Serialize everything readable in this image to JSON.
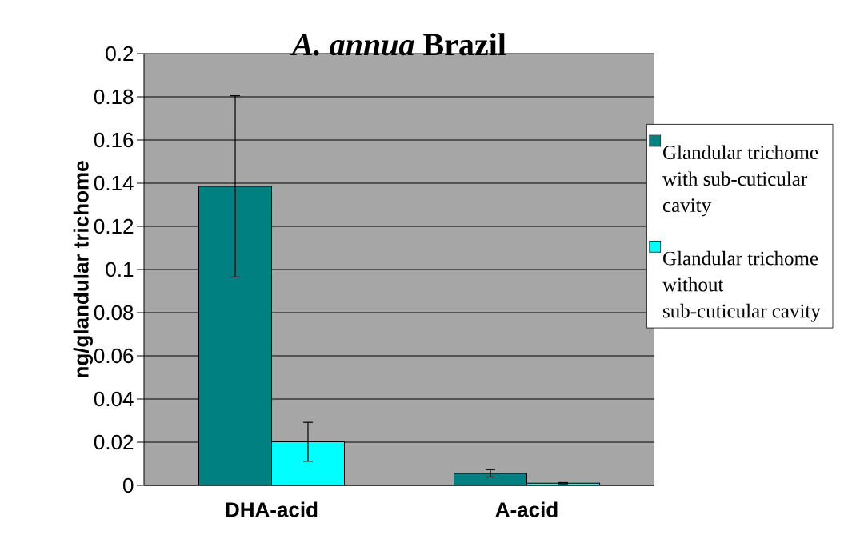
{
  "chart_data": {
    "type": "bar",
    "title": "*A. annua* Brazil",
    "ylabel": "ng/glandular trichome",
    "categories": [
      "DHA-acid",
      "A-acid"
    ],
    "series": [
      {
        "name": "Glandular trichome with sub-cuticular cavity",
        "color": "#008080",
        "values": [
          0.1385,
          0.0056
        ],
        "errors": [
          0.042,
          0.0017
        ]
      },
      {
        "name": "Glandular trichome without sub-cuticular cavity",
        "color": "#00ffff",
        "values": [
          0.0202,
          0.001
        ],
        "errors": [
          0.009,
          0.0003
        ]
      }
    ],
    "ylim": [
      0,
      0.2
    ],
    "yticks": [
      0,
      0.02,
      0.04,
      0.06,
      0.08,
      0.1,
      0.12,
      0.14,
      0.16,
      0.18,
      0.2
    ],
    "grid": "y",
    "legend": "right"
  }
}
